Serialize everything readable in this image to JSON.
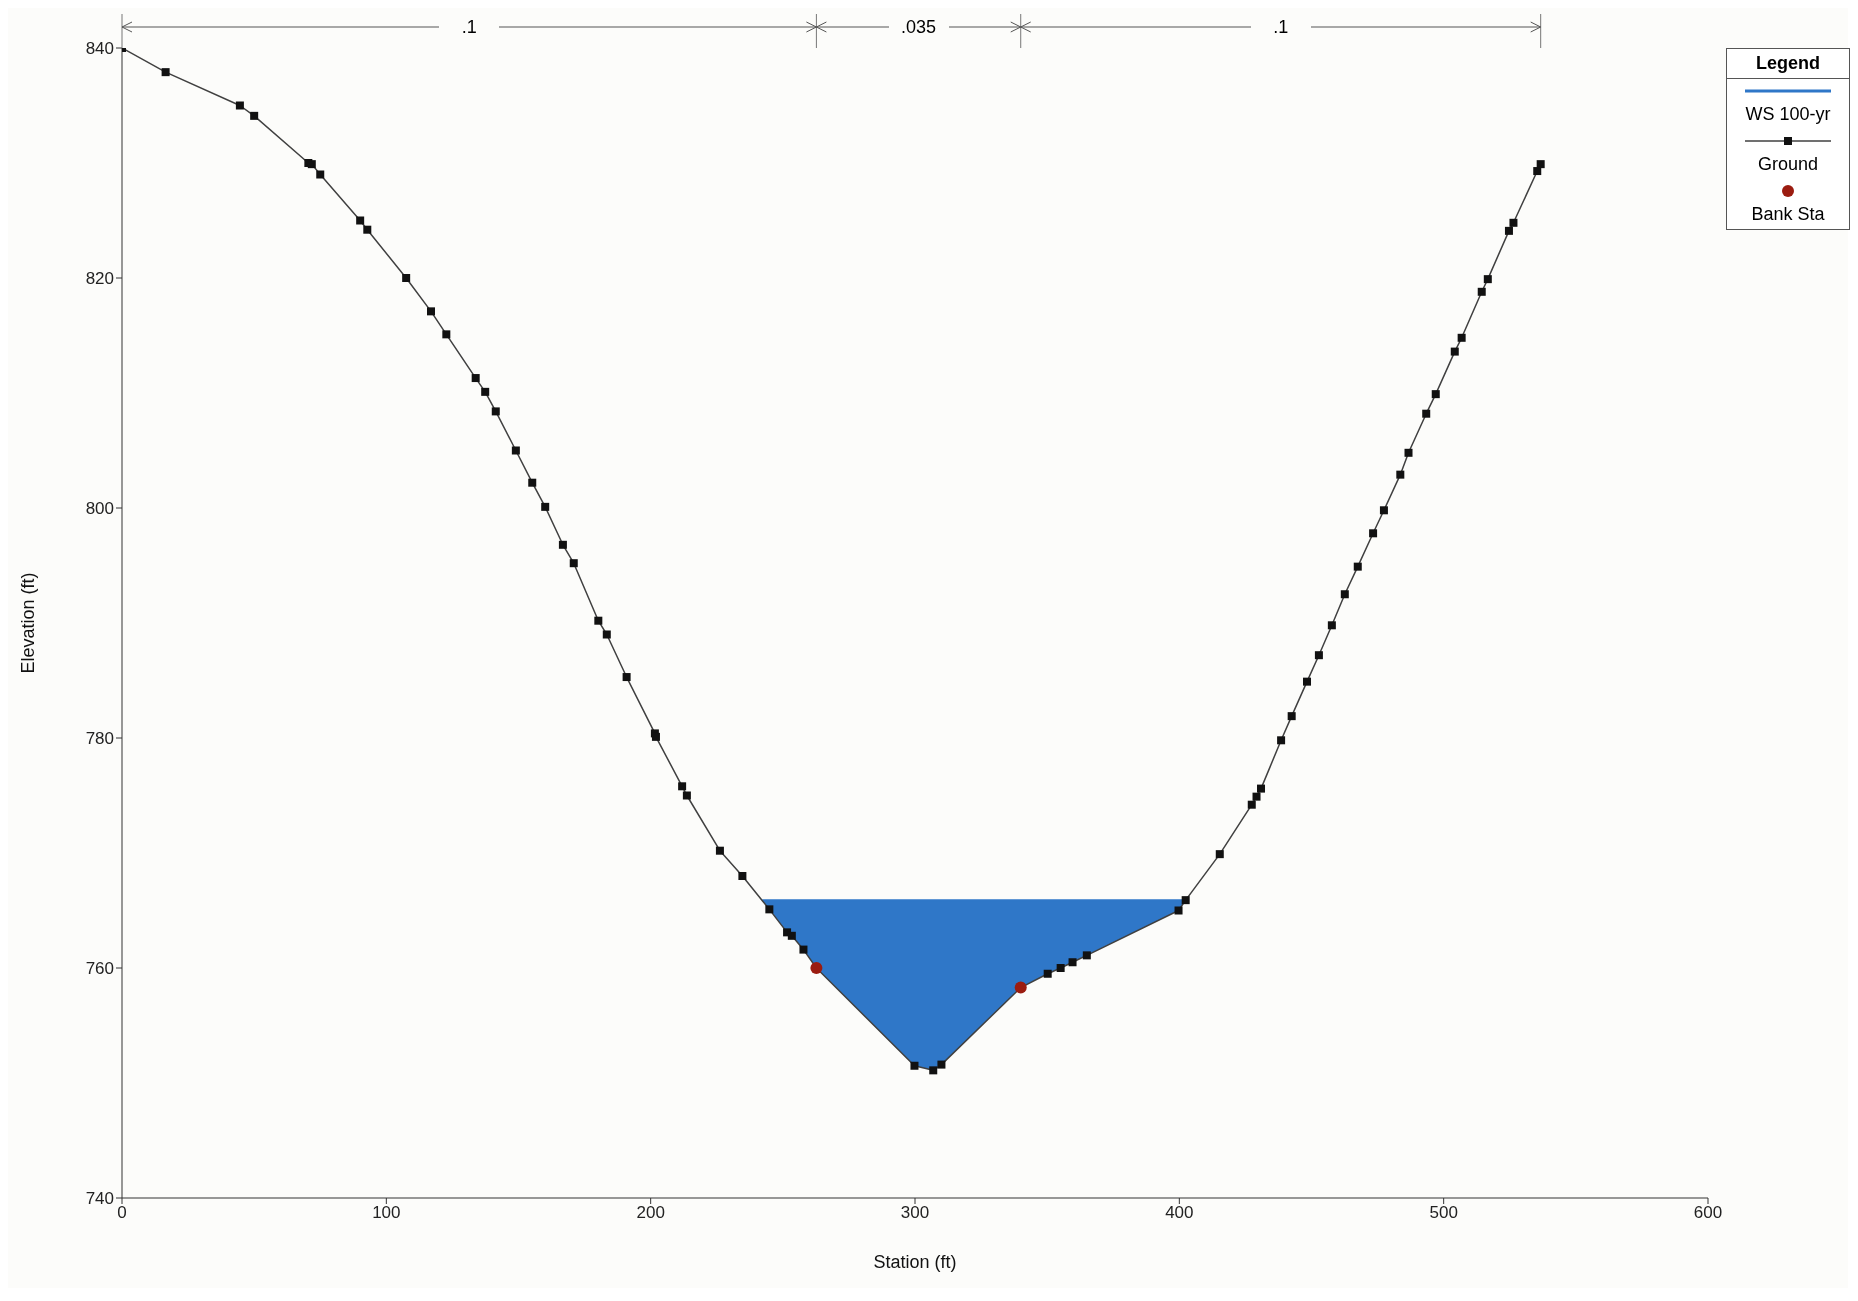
{
  "chart_data": {
    "type": "line",
    "xlabel": "Station (ft)",
    "ylabel": "Elevation (ft)",
    "legend_title": "Legend",
    "legend": "top right",
    "annotations": [
      ".1",
      ".035",
      ".1"
    ],
    "xlim": [
      0,
      600
    ],
    "xticks": [
      0,
      100,
      200,
      300,
      400,
      500,
      600
    ],
    "ylim": [
      740,
      840
    ],
    "yticks": [
      740,
      760,
      780,
      800,
      820,
      840
    ],
    "grid": false,
    "series": [
      {
        "name": "WS 100-yr",
        "type": "area",
        "color": "#2f77c8",
        "x": [
          242.2,
          244.9,
          251.6,
          253.4,
          257.8,
          262.7,
          299.8,
          306.9,
          310,
          340,
          350.2,
          355.1,
          359.6,
          365,
          399.7,
          402.4
        ],
        "values": [
          765.9,
          765.9,
          765.9,
          765.9,
          765.9,
          765.9,
          765.9,
          765.9,
          765.9,
          765.9,
          765.9,
          765.9,
          765.9,
          765.9,
          765.9,
          765.9
        ]
      },
      {
        "name": "Ground",
        "color": "#404040",
        "marker": "square",
        "x": [
          0,
          16.5,
          44.6,
          50,
          70.5,
          71.8,
          75,
          90.1,
          92.8,
          107.5,
          116.9,
          122.7,
          133.8,
          137.4,
          141.4,
          149,
          155.2,
          160.1,
          166.8,
          170.9,
          180.2,
          183.4,
          190.9,
          201.6,
          202,
          211.9,
          213.7,
          226.2,
          234.7,
          244.9,
          251.6,
          253.4,
          257.8,
          262.7,
          299.8,
          306.9,
          310,
          340,
          350.2,
          355.1,
          359.6,
          365,
          399.7,
          402.4,
          415.3,
          427.4,
          429.2,
          430.9,
          438.5,
          442.5,
          448.3,
          452.8,
          457.7,
          462.6,
          467.5,
          473.3,
          477.4,
          483.6,
          486.7,
          493.4,
          497,
          504.2,
          506.8,
          514.4,
          516.7,
          524.7,
          526.4,
          535.4,
          536.7
        ],
        "values": [
          840,
          837.9,
          835,
          834.1,
          830,
          829.9,
          829,
          825,
          824.2,
          820,
          817.1,
          815.1,
          811.3,
          810.1,
          808.4,
          805,
          802.2,
          800.1,
          796.8,
          795.2,
          790.2,
          789,
          785.3,
          780.4,
          780.1,
          775.8,
          775,
          770.2,
          768,
          765.1,
          763.1,
          762.8,
          761.6,
          760,
          751.5,
          751.1,
          751.6,
          758.3,
          759.5,
          760,
          760.5,
          761.1,
          765,
          765.9,
          769.9,
          774.2,
          774.9,
          775.6,
          779.8,
          781.9,
          784.9,
          787.2,
          789.8,
          792.5,
          794.9,
          797.8,
          799.8,
          802.9,
          804.8,
          808.2,
          809.9,
          813.6,
          814.8,
          818.8,
          819.9,
          824.1,
          824.8,
          829.3,
          829.9
        ]
      },
      {
        "name": "Bank Sta",
        "type": "scatter",
        "color": "#9b1c10",
        "marker": "circle",
        "x": [
          262.7,
          340
        ],
        "values": [
          760,
          758.3
        ]
      }
    ]
  }
}
